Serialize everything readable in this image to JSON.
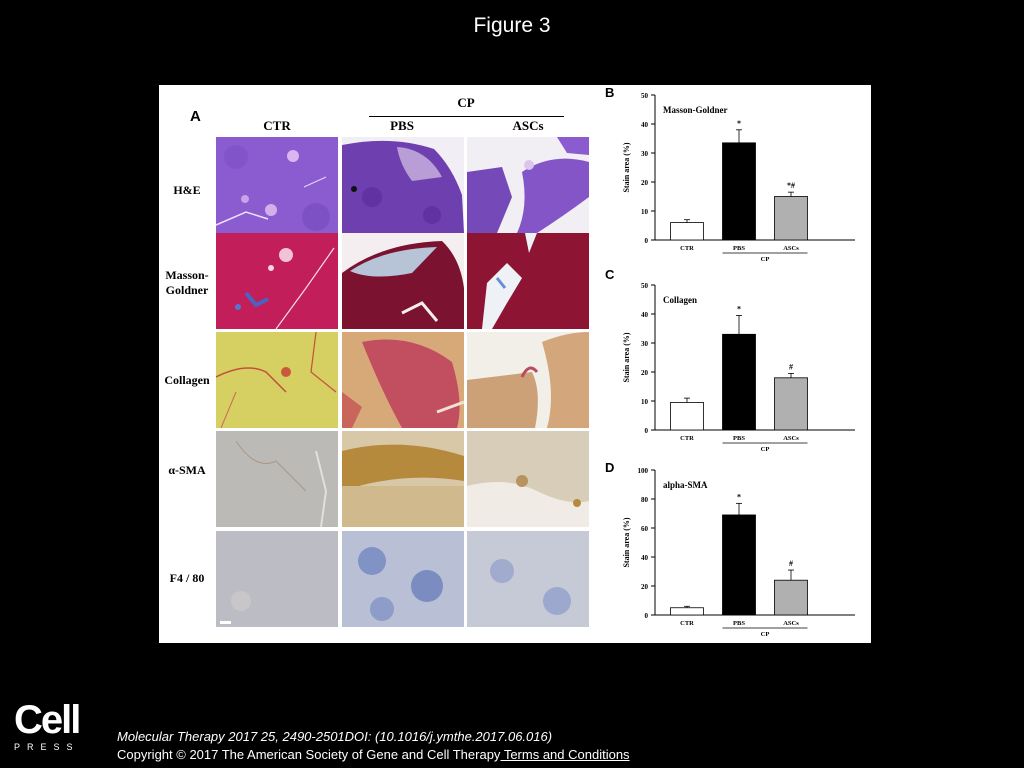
{
  "slide": {
    "title": "Figure 3"
  },
  "panelA": {
    "letter": "A",
    "group_label": "CP",
    "columns": [
      "CTR",
      "PBS",
      "ASCs"
    ],
    "rows": [
      "H&E",
      "Masson-\nGoldner",
      "Collagen",
      "α-SMA",
      "F4 / 80"
    ]
  },
  "chart_data": [
    {
      "type": "bar",
      "panel": "B",
      "title": "Masson-Goldner",
      "ylabel": "Stain area (%)",
      "xlabel": "",
      "categories": [
        "CTR",
        "PBS",
        "ASCs"
      ],
      "group_label": "CP",
      "values": [
        6,
        33.5,
        15
      ],
      "errors": [
        1,
        4.5,
        1.5
      ],
      "annotations": [
        "",
        "*",
        "*#"
      ],
      "colors": [
        "#ffffff",
        "#000000",
        "#b0b0b0"
      ],
      "ylim": [
        0,
        50
      ],
      "yticks": [
        0,
        10,
        20,
        30,
        40,
        50
      ]
    },
    {
      "type": "bar",
      "panel": "C",
      "title": "Collagen",
      "ylabel": "Stain area (%)",
      "xlabel": "",
      "categories": [
        "CTR",
        "PBS",
        "ASCs"
      ],
      "group_label": "CP",
      "values": [
        9.5,
        33,
        18
      ],
      "errors": [
        1.5,
        6.5,
        1.5
      ],
      "annotations": [
        "",
        "*",
        "#"
      ],
      "colors": [
        "#ffffff",
        "#000000",
        "#b0b0b0"
      ],
      "ylim": [
        0,
        50
      ],
      "yticks": [
        0,
        10,
        20,
        30,
        40,
        50
      ]
    },
    {
      "type": "bar",
      "panel": "D",
      "title": "alpha-SMA",
      "ylabel": "Stain area (%)",
      "xlabel": "",
      "categories": [
        "CTR",
        "PBS",
        "ASCs"
      ],
      "group_label": "CP",
      "values": [
        5,
        69,
        24
      ],
      "errors": [
        1,
        8,
        7
      ],
      "annotations": [
        "",
        "*",
        "#"
      ],
      "colors": [
        "#ffffff",
        "#000000",
        "#b0b0b0"
      ],
      "ylim": [
        0,
        100
      ],
      "yticks": [
        0,
        20,
        40,
        60,
        80,
        100
      ]
    }
  ],
  "footer": {
    "logo_main": "Cell",
    "logo_sub": "PRESS",
    "citation": "Molecular Therapy 2017 25, 2490-2501DOI: (10.1016/j.ymthe.2017.06.016)",
    "copyright": "Copyright © 2017 The American Society of Gene and Cell Therapy",
    "terms_link": " Terms and Conditions"
  }
}
